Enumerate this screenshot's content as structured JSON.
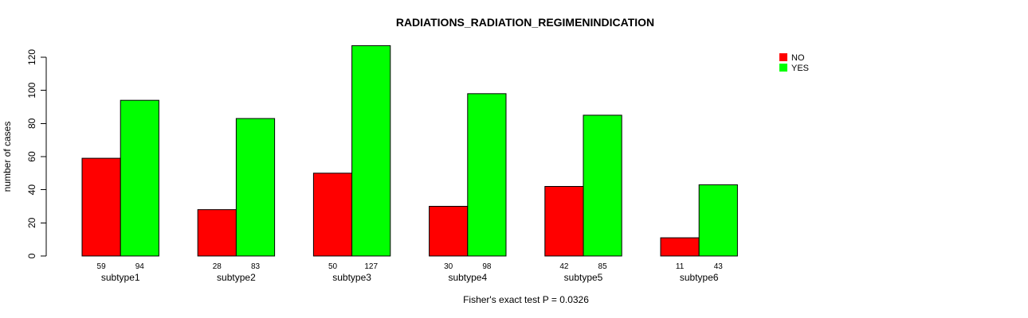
{
  "title": "RADIATIONS_RADIATION_REGIMENINDICATION",
  "footer": "Fisher's exact test P = 0.0326",
  "legend": {
    "position": "top-right",
    "items": [
      {
        "label": "NO",
        "color": "#FF0000"
      },
      {
        "label": "YES",
        "color": "#00FF00"
      }
    ]
  },
  "chart_data": {
    "type": "bar",
    "title": "RADIATIONS_RADIATION_REGIMENINDICATION",
    "categories": [
      "subtype1",
      "subtype2",
      "subtype3",
      "subtype4",
      "subtype5",
      "subtype6"
    ],
    "series": [
      {
        "name": "NO",
        "color": "#FF0000",
        "values": [
          59,
          28,
          50,
          30,
          42,
          11
        ]
      },
      {
        "name": "YES",
        "color": "#00FF00",
        "values": [
          94,
          83,
          127,
          98,
          85,
          43
        ]
      }
    ],
    "bar_value_labels": {
      "NO": [
        "59",
        "28",
        "50",
        "30",
        "42",
        "11"
      ],
      "YES": [
        "94",
        "83",
        "127",
        "98",
        "85",
        "43"
      ]
    },
    "xlabel": "",
    "ylabel": "number of cases",
    "yticks": [
      0,
      20,
      40,
      60,
      80,
      100,
      120
    ],
    "ylim": [
      0,
      127
    ],
    "grid": false,
    "legend_position": "top-right",
    "annotation": "Fisher's exact test P = 0.0326"
  }
}
